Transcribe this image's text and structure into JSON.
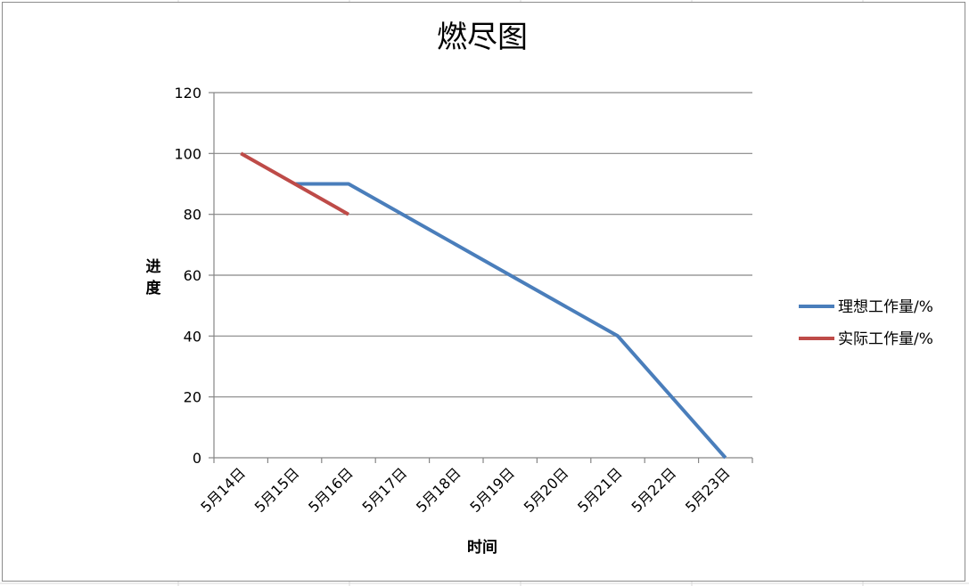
{
  "chart_data": {
    "type": "line",
    "title": "燃尽图",
    "xlabel": "时间",
    "ylabel": "进度",
    "categories": [
      "5月14日",
      "5月15日",
      "5月16日",
      "5月17日",
      "5月18日",
      "5月19日",
      "5月20日",
      "5月21日",
      "5月22日",
      "5月23日"
    ],
    "ylim": [
      0,
      120
    ],
    "yticks": [
      0,
      20,
      40,
      60,
      80,
      100,
      120
    ],
    "grid": true,
    "legend_position": "right",
    "series": [
      {
        "name": "理想工作量/%",
        "color": "#4a7ebb",
        "points": [
          {
            "x": 1.0,
            "y": 90
          },
          {
            "x": 2.0,
            "y": 90
          },
          {
            "x": 7.0,
            "y": 40
          },
          {
            "x": 9.0,
            "y": 0
          }
        ]
      },
      {
        "name": "实际工作量/%",
        "color": "#be4b48",
        "points": [
          {
            "x": 0,
            "y": 100
          },
          {
            "x": 2.0,
            "y": 80
          }
        ]
      }
    ]
  }
}
